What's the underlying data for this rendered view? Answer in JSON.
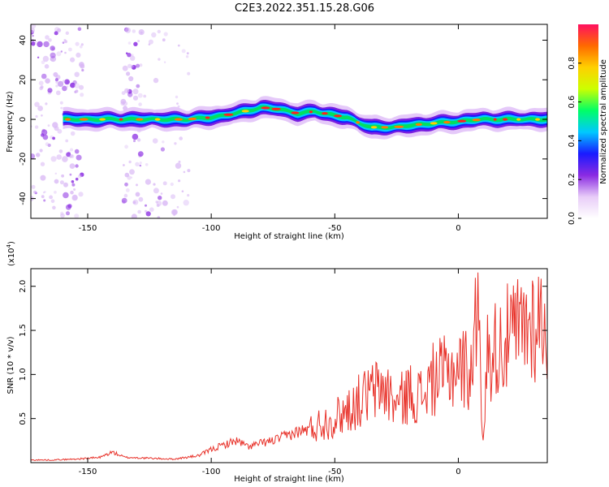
{
  "title": "C2E3.2022.351.15.28.G06",
  "chart_data": [
    {
      "type": "heatmap",
      "xlabel": "Height of straight line (km)",
      "ylabel": "Frequency (Hz)",
      "xlim": [
        -173,
        36
      ],
      "ylim": [
        -50,
        48
      ],
      "x_ticks": [
        -150,
        -100,
        -50,
        0
      ],
      "x_tick_labels": [
        "-150",
        "-100",
        "-50",
        "0"
      ],
      "y_ticks": [
        -40,
        -20,
        0,
        20,
        40
      ],
      "y_tick_labels": [
        "-40",
        "-20",
        "0",
        "20",
        "40"
      ],
      "colorbar": {
        "label": "Normalized spectral amplitude",
        "range": [
          0,
          1
        ],
        "ticks": [
          0.0,
          0.2,
          0.4,
          0.6,
          0.8
        ],
        "tick_labels": [
          "0.0",
          "0.2",
          "0.4",
          "0.6",
          "0.8"
        ],
        "colormap": [
          "#ffffff",
          "#e8ccf8",
          "#8a2be2",
          "#1a1aff",
          "#00c8ff",
          "#00ff66",
          "#ccff00",
          "#ffd000",
          "#ff6a00",
          "#ff1060"
        ]
      },
      "ridge": {
        "x": [
          -160,
          -150,
          -140,
          -130,
          -120,
          -110,
          -100,
          -90,
          -80,
          -72,
          -65,
          -58,
          -50,
          -45,
          -40,
          -35,
          -30,
          -25,
          -20,
          -10,
          0,
          10,
          20,
          30,
          36
        ],
        "y": [
          0,
          0,
          0,
          0,
          0,
          0,
          1,
          3,
          6,
          5,
          3,
          4,
          2,
          1,
          -2,
          -4,
          -4,
          -4,
          -3,
          -2,
          -1,
          0,
          0,
          0,
          0
        ]
      }
    },
    {
      "type": "line",
      "xlabel": "Height of straight line (km)",
      "ylabel": "SNR (10 * v/v)",
      "multiplier": "(x10",
      "multiplier_exp": "4",
      "multiplier_close": ")",
      "xlim": [
        -173,
        36
      ],
      "ylim": [
        0,
        2.2
      ],
      "x_ticks": [
        -150,
        -100,
        -50,
        0
      ],
      "x_tick_labels": [
        "-150",
        "-100",
        "-50",
        "0"
      ],
      "y_ticks": [
        0.5,
        1.0,
        1.5,
        2.0
      ],
      "y_tick_labels": [
        "0.5",
        "1.0",
        "1.5",
        "2.0"
      ],
      "series": [
        {
          "color": "#e8322a",
          "x": [
            -173,
            -165,
            -155,
            -145,
            -140,
            -135,
            -125,
            -115,
            -105,
            -100,
            -95,
            -90,
            -85,
            -80,
            -75,
            -70,
            -65,
            -60,
            -55,
            -50,
            -45,
            -40,
            -35,
            -30,
            -25,
            -20,
            -15,
            -10,
            -5,
            0,
            5,
            8,
            10,
            15,
            20,
            25,
            30,
            36
          ],
          "y": [
            0.03,
            0.03,
            0.04,
            0.06,
            0.12,
            0.06,
            0.05,
            0.04,
            0.08,
            0.15,
            0.2,
            0.25,
            0.18,
            0.22,
            0.25,
            0.3,
            0.35,
            0.38,
            0.45,
            0.5,
            0.6,
            0.7,
            0.8,
            0.85,
            0.65,
            0.8,
            0.75,
            0.95,
            1.0,
            1.1,
            1.05,
            1.7,
            1.2,
            1.3,
            1.4,
            1.5,
            1.6,
            1.63
          ]
        }
      ]
    }
  ]
}
